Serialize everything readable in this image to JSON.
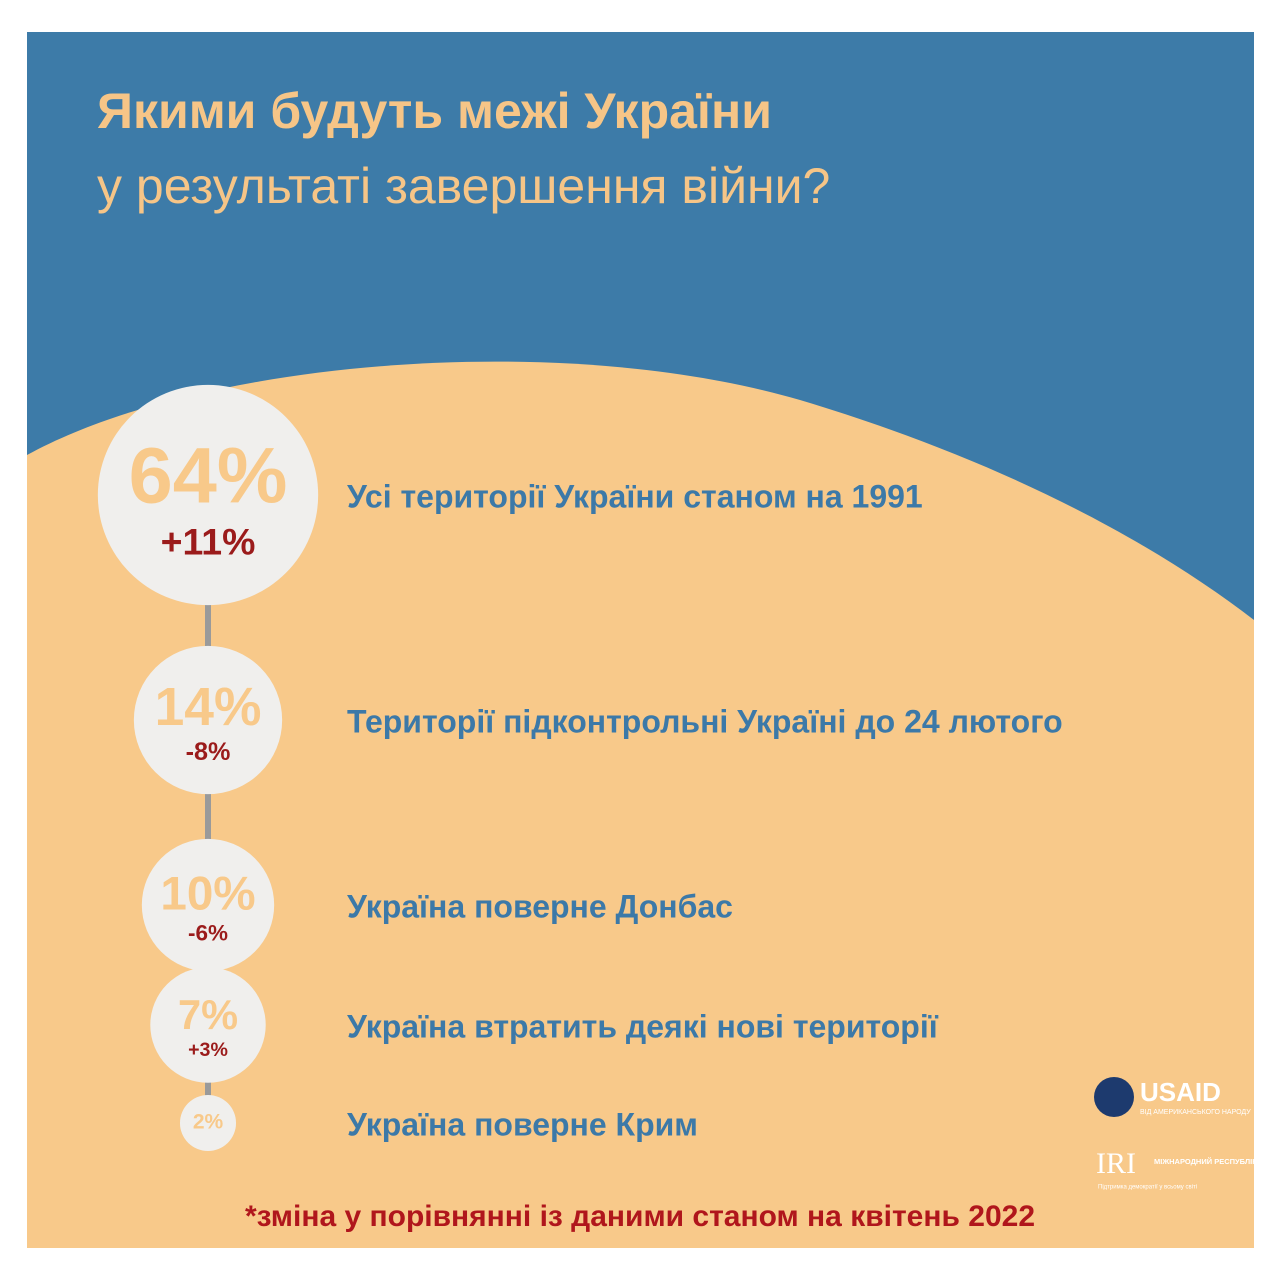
{
  "chart_data": {
    "type": "bubble",
    "title": "Якими будуть межі України",
    "subtitle": "у результаті завершення війни?",
    "categories": [
      "Усі території України станом на 1991",
      "Території підконтрольні Україні до 24 лютого",
      "Україна поверне Донбас",
      "Україна втратить деякі нові території",
      "Україна поверне Крим"
    ],
    "values": [
      64,
      14,
      10,
      7,
      2
    ],
    "value_labels": [
      "64%",
      "14%",
      "10%",
      "7%",
      "2%"
    ],
    "changes": [
      11,
      -8,
      -6,
      3,
      null
    ],
    "change_labels": [
      "+11%",
      "-8%",
      "-6%",
      "+3%",
      null
    ],
    "footnote": "*зміна у порівнянні із даними станом на квітень 2022",
    "logos": {
      "usaid": "USAID",
      "usaid_tagline": "ВІД АМЕРИКАНСЬКОГО НАРОДУ",
      "iri": "IRI",
      "iri_name": "МІЖНАРОДНИЙ РЕСПУБЛІКАНСЬКИЙ ІНСТИТУТ",
      "iri_tagline": "Підтримка демократії у всьому світі"
    }
  }
}
